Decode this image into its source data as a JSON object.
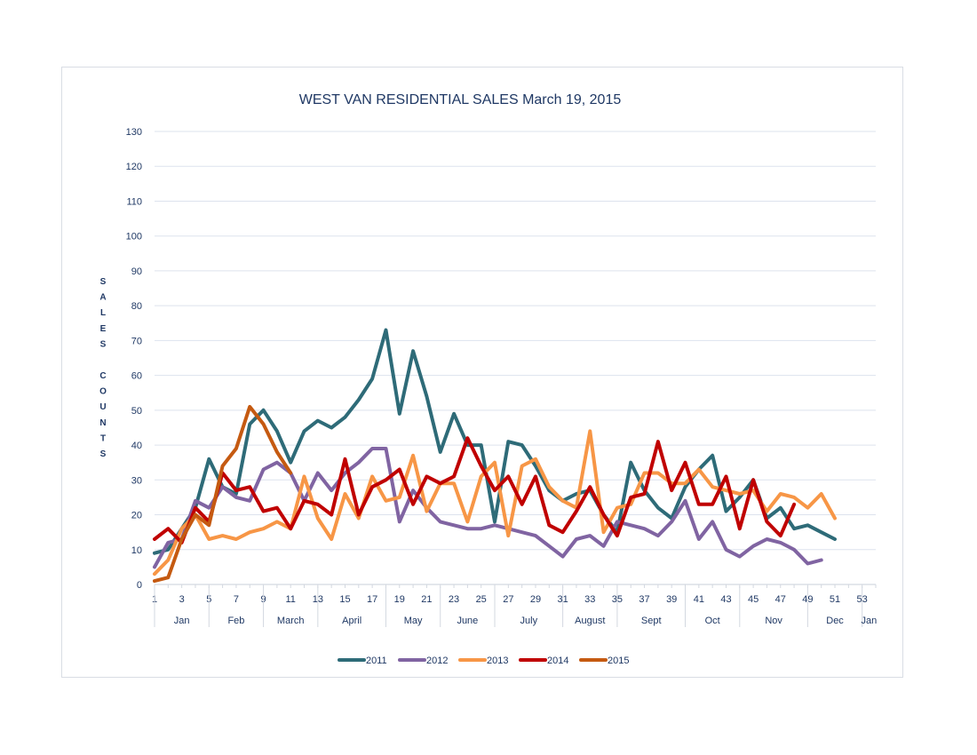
{
  "chart_data": {
    "type": "line",
    "title": "WEST VAN RESIDENTIAL SALES  March 19, 2015",
    "ylabel": "SALES COUNTS",
    "ylabel_words": [
      "SALES",
      "COUNTS"
    ],
    "xlabel": "",
    "ylim": [
      0,
      130
    ],
    "y_ticks": [
      0,
      10,
      20,
      30,
      40,
      50,
      60,
      70,
      80,
      90,
      100,
      110,
      120,
      130
    ],
    "x_range": [
      1,
      54
    ],
    "x_ticks": [
      1,
      3,
      5,
      7,
      9,
      11,
      13,
      15,
      17,
      19,
      21,
      23,
      25,
      27,
      29,
      31,
      33,
      35,
      37,
      39,
      41,
      43,
      45,
      47,
      49,
      51,
      53
    ],
    "months": [
      {
        "label": "Jan",
        "start": 1,
        "end": 5
      },
      {
        "label": "Feb",
        "start": 5,
        "end": 9
      },
      {
        "label": "March",
        "start": 9,
        "end": 13
      },
      {
        "label": "April",
        "start": 13,
        "end": 18
      },
      {
        "label": "May",
        "start": 18,
        "end": 22
      },
      {
        "label": "June",
        "start": 22,
        "end": 26
      },
      {
        "label": "July",
        "start": 26,
        "end": 31
      },
      {
        "label": "August",
        "start": 31,
        "end": 35
      },
      {
        "label": "Sept",
        "start": 35,
        "end": 40
      },
      {
        "label": "Oct",
        "start": 40,
        "end": 44
      },
      {
        "label": "Nov",
        "start": 44,
        "end": 49
      },
      {
        "label": "Dec",
        "start": 49,
        "end": 53
      },
      {
        "label": "Jan",
        "start": 53,
        "end": 54
      }
    ],
    "gridlines": true,
    "legend_position": "bottom",
    "series": [
      {
        "name": "2011",
        "color": "#2e6b78",
        "values": [
          9,
          10,
          16,
          22,
          36,
          28,
          26,
          46,
          50,
          44,
          35,
          44,
          47,
          45,
          48,
          53,
          59,
          73,
          49,
          67,
          54,
          38,
          49,
          40,
          40,
          18,
          41,
          40,
          34,
          27,
          24,
          26,
          27,
          20,
          15,
          35,
          27,
          22,
          19,
          28,
          33,
          37,
          21,
          25,
          30,
          19,
          22,
          16,
          17,
          15,
          13
        ]
      },
      {
        "name": "2012",
        "color": "#8064a2",
        "values": [
          5,
          12,
          13,
          24,
          22,
          28,
          25,
          24,
          33,
          35,
          32,
          24,
          32,
          27,
          32,
          35,
          39,
          39,
          18,
          27,
          22,
          18,
          17,
          16,
          16,
          17,
          16,
          15,
          14,
          11,
          8,
          13,
          14,
          11,
          18,
          17,
          16,
          14,
          18,
          24,
          13,
          18,
          10,
          8,
          11,
          13,
          12,
          10,
          6,
          7
        ]
      },
      {
        "name": "2013",
        "color": "#f79646",
        "values": [
          3,
          7,
          16,
          20,
          13,
          14,
          13,
          15,
          16,
          18,
          16,
          31,
          19,
          13,
          26,
          19,
          31,
          24,
          25,
          37,
          21,
          29,
          29,
          18,
          31,
          35,
          14,
          34,
          36,
          28,
          24,
          22,
          44,
          15,
          22,
          23,
          32,
          32,
          29,
          29,
          33,
          28,
          27,
          26,
          27,
          21,
          26,
          25,
          22,
          26,
          19
        ]
      },
      {
        "name": "2014",
        "color": "#c00000",
        "values": [
          13,
          16,
          12,
          22,
          18,
          32,
          27,
          28,
          21,
          22,
          16,
          24,
          23,
          20,
          36,
          20,
          28,
          30,
          33,
          23,
          31,
          29,
          31,
          42,
          34,
          27,
          31,
          23,
          31,
          17,
          15,
          21,
          28,
          20,
          14,
          25,
          26,
          41,
          27,
          35,
          23,
          23,
          31,
          16,
          30,
          18,
          14,
          23
        ]
      },
      {
        "name": "2015",
        "color": "#c55a11",
        "values": [
          1,
          2,
          13,
          20,
          17,
          34,
          39,
          51,
          46,
          38,
          32
        ]
      }
    ]
  }
}
